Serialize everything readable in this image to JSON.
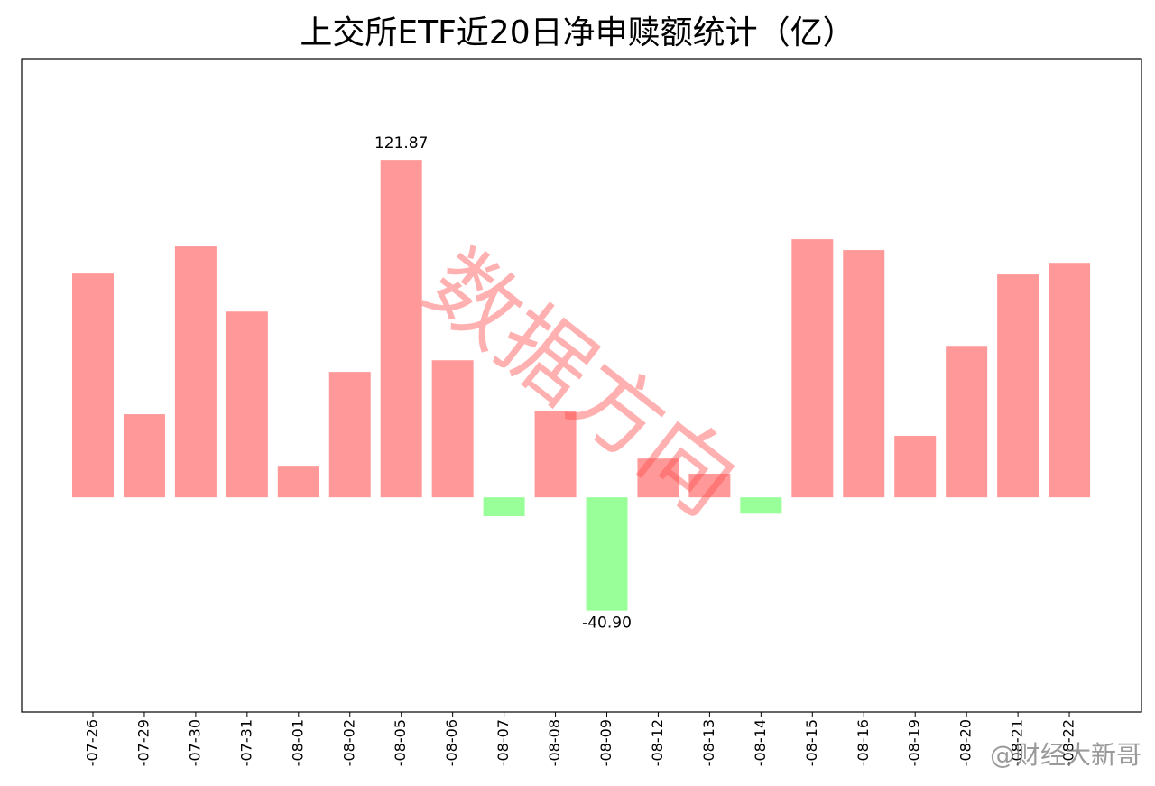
{
  "chart_data": {
    "type": "bar",
    "title": "上交所ETF近20日净申赎额统计（亿）",
    "categories": [
      "-07-26",
      "-07-29",
      "-07-30",
      "-07-31",
      "-08-01",
      "-08-02",
      "-08-05",
      "-08-06",
      "-08-07",
      "-08-08",
      "-08-09",
      "-08-12",
      "-08-13",
      "-08-14",
      "-08-15",
      "-08-16",
      "-08-19",
      "-08-20",
      "-08-21",
      "-08-22"
    ],
    "values": [
      80.8,
      30.0,
      90.6,
      67.1,
      11.4,
      45.3,
      121.87,
      49.5,
      -6.8,
      31.0,
      -40.9,
      14.0,
      8.5,
      -5.9,
      93.2,
      89.3,
      22.2,
      54.7,
      80.5,
      84.7
    ],
    "value_labels": [
      null,
      null,
      null,
      null,
      null,
      null,
      "121.87",
      null,
      null,
      null,
      "-40.90",
      null,
      null,
      null,
      null,
      null,
      null,
      null,
      null,
      null
    ],
    "color_positive": "#ff9999",
    "color_negative": "#99ff99",
    "ylim": [
      -77.5,
      158.4
    ],
    "watermark": "数据方向",
    "source": "@财经大新哥"
  }
}
